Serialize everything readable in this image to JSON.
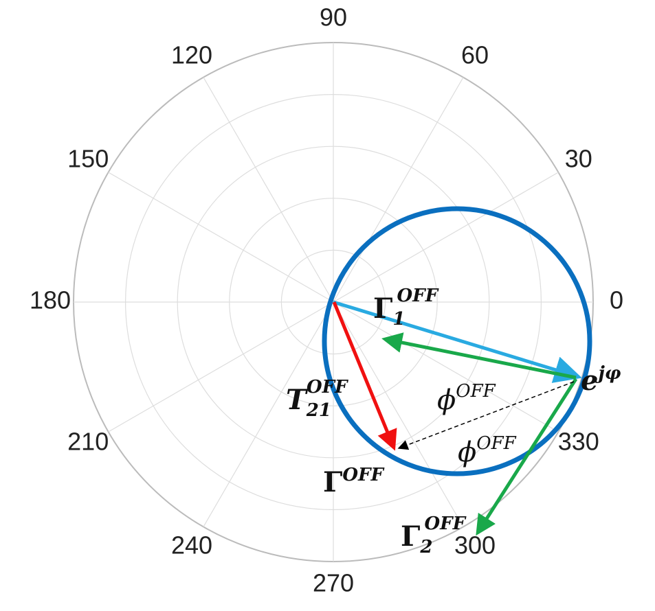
{
  "angle_labels": [
    "0",
    "30",
    "60",
    "90",
    "120",
    "150",
    "180",
    "210",
    "240",
    "270",
    "300",
    "330"
  ],
  "annotations": {
    "gamma1": {
      "base": "Γ",
      "sub": "1",
      "sup": "OFF"
    },
    "ejphi": {
      "base": "e",
      "sup": "jφ"
    },
    "phi_a": {
      "base": "ϕ",
      "sup": "OFF"
    },
    "phi_b": {
      "base": "ϕ",
      "sup": "OFF"
    },
    "t21": {
      "base": "T",
      "sub": "21",
      "sup": "OFF"
    },
    "gamma": {
      "base": "Γ",
      "sup": "OFF"
    },
    "gamma2": {
      "base": "Γ",
      "sub": "2",
      "sup": "OFF"
    }
  }
}
